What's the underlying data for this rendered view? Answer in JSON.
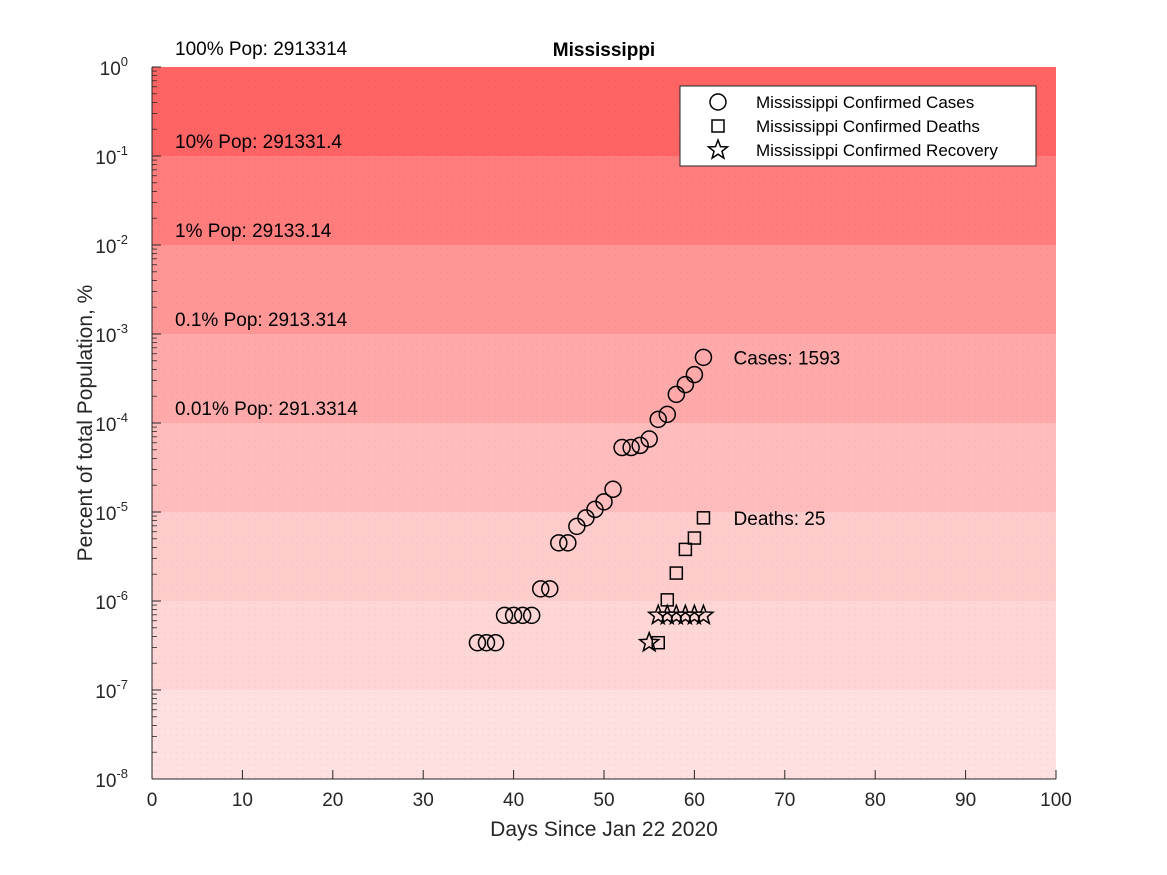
{
  "chart_data": {
    "type": "scatter",
    "title": "Mississippi",
    "xlabel": "Days Since Jan 22 2020",
    "ylabel": "Percent of total Population, %",
    "xlim": [
      0,
      100
    ],
    "ylim": [
      1e-08,
      1
    ],
    "yscale": "log",
    "x_ticks": [
      0,
      10,
      20,
      30,
      40,
      50,
      60,
      70,
      80,
      90,
      100
    ],
    "y_tick_exponents": [
      "0",
      "-1",
      "-2",
      "-3",
      "-4",
      "-5",
      "-6",
      "-7",
      "-8"
    ],
    "y_tick_base": "10",
    "legend_position": "top-right",
    "bands": [
      {
        "label": "100% Pop: 2913314",
        "lower": 0.1,
        "upper": 1,
        "color": "#ff6464"
      },
      {
        "label": "10% Pop: 291331.4",
        "lower": 0.01,
        "upper": 0.1,
        "color": "#ff7d7d"
      },
      {
        "label": "1% Pop: 29133.14",
        "lower": 0.001,
        "upper": 0.01,
        "color": "#ff9696"
      },
      {
        "label": "0.1% Pop: 2913.314",
        "lower": 0.0001,
        "upper": 0.001,
        "color": "#ffaaaa"
      },
      {
        "label": "0.01% Pop: 291.3314",
        "lower": 1e-05,
        "upper": 0.0001,
        "color": "#ffbcbc"
      },
      {
        "label": "",
        "lower": 1e-06,
        "upper": 1e-05,
        "color": "#ffcccc"
      },
      {
        "label": "",
        "lower": 1e-07,
        "upper": 1e-06,
        "color": "#ffd6d6"
      },
      {
        "label": "",
        "lower": 1e-08,
        "upper": 1e-07,
        "color": "#ffe0e0"
      }
    ],
    "series": [
      {
        "name": "Mississippi Confirmed Cases",
        "marker": "circle",
        "x": [
          36,
          37,
          38,
          39,
          40,
          41,
          42,
          43,
          44,
          45,
          46,
          47,
          48,
          49,
          50,
          51,
          52,
          53,
          54,
          55,
          56,
          57,
          58,
          59,
          60,
          61
        ],
        "y": [
          3.4e-07,
          3.4e-07,
          3.4e-07,
          6.9e-07,
          6.9e-07,
          6.9e-07,
          6.9e-07,
          1.37e-06,
          1.37e-06,
          4.5e-06,
          4.5e-06,
          6.9e-06,
          8.6e-06,
          1.07e-05,
          1.3e-05,
          1.8e-05,
          5.3e-05,
          5.3e-05,
          5.6e-05,
          6.6e-05,
          0.00011,
          0.000125,
          0.00021,
          0.00027,
          0.00035,
          0.000547
        ]
      },
      {
        "name": "Mississippi Confirmed Deaths",
        "marker": "square",
        "x": [
          56,
          57,
          58,
          59,
          60,
          61
        ],
        "y": [
          3.4e-07,
          1.03e-06,
          2.06e-06,
          3.8e-06,
          5.1e-06,
          8.6e-06
        ]
      },
      {
        "name": "Mississippi Confirmed Recovery",
        "marker": "star",
        "x": [
          55,
          56,
          57,
          58,
          59,
          60,
          61
        ],
        "y": [
          3.4e-07,
          6.9e-07,
          6.9e-07,
          6.9e-07,
          6.9e-07,
          6.9e-07,
          6.9e-07
        ]
      }
    ],
    "annotations": [
      {
        "text": "Cases: 1593",
        "x": 64,
        "y": 0.000547
      },
      {
        "text": "Deaths: 25",
        "x": 64,
        "y": 8.6e-06
      }
    ]
  }
}
